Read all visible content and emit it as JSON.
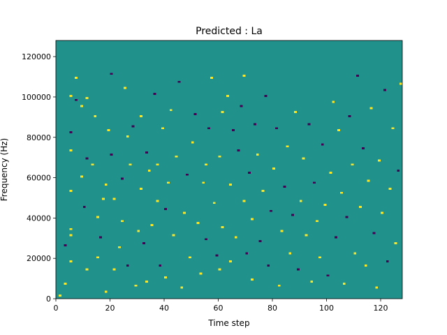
{
  "chart_data": {
    "type": "heatmap",
    "title": "Predicted : La",
    "xlabel": "Time step",
    "ylabel": "Frequency (Hz)",
    "xlim": [
      0,
      128
    ],
    "ylim": [
      0,
      128000
    ],
    "x_ticks": [
      0,
      20,
      40,
      60,
      80,
      100,
      120
    ],
    "y_ticks": [
      0,
      20000,
      40000,
      60000,
      80000,
      100000,
      120000
    ],
    "x_tick_labels": [
      "0",
      "20",
      "40",
      "60",
      "80",
      "100",
      "120"
    ],
    "y_tick_labels": [
      "0",
      "20000",
      "40000",
      "60000",
      "80000",
      "100000",
      "120000"
    ],
    "colormap": "viridis",
    "colors": {
      "low": "#440154",
      "mid": "#21918c",
      "high": "#fde725"
    },
    "levels": {
      "low": -1,
      "background": 0,
      "high": 1
    },
    "grid": false,
    "colorbar": false,
    "n_time_steps": 128,
    "n_freq_bins": 128,
    "freq_bin_width_hz": 1000,
    "cells": [
      [
        1,
        1,
        1
      ],
      [
        3,
        7,
        1
      ],
      [
        3,
        26,
        -1
      ],
      [
        5,
        18,
        1
      ],
      [
        5,
        31,
        1
      ],
      [
        5,
        34,
        1
      ],
      [
        5,
        53,
        1
      ],
      [
        5,
        73,
        1
      ],
      [
        5,
        82,
        -1
      ],
      [
        5,
        100,
        1
      ],
      [
        7,
        98,
        -1
      ],
      [
        7,
        109,
        1
      ],
      [
        9,
        60,
        1
      ],
      [
        9,
        95,
        1
      ],
      [
        10,
        45,
        -1
      ],
      [
        11,
        69,
        -1
      ],
      [
        11,
        14,
        1
      ],
      [
        11,
        99,
        1
      ],
      [
        13,
        66,
        1
      ],
      [
        14,
        90,
        1
      ],
      [
        15,
        20,
        1
      ],
      [
        15,
        40,
        1
      ],
      [
        16,
        30,
        -1
      ],
      [
        17,
        49,
        1
      ],
      [
        18,
        3,
        1
      ],
      [
        18,
        56,
        1
      ],
      [
        19,
        83,
        1
      ],
      [
        20,
        71,
        -1
      ],
      [
        20,
        111,
        -1
      ],
      [
        21,
        14,
        1
      ],
      [
        21,
        49,
        1
      ],
      [
        23,
        25,
        1
      ],
      [
        24,
        38,
        1
      ],
      [
        24,
        59,
        -1
      ],
      [
        25,
        104,
        1
      ],
      [
        26,
        16,
        -1
      ],
      [
        26,
        80,
        1
      ],
      [
        27,
        66,
        1
      ],
      [
        28,
        85,
        -1
      ],
      [
        29,
        6,
        1
      ],
      [
        30,
        33,
        1
      ],
      [
        31,
        54,
        1
      ],
      [
        31,
        90,
        1
      ],
      [
        32,
        27,
        -1
      ],
      [
        33,
        8,
        1
      ],
      [
        33,
        72,
        -1
      ],
      [
        34,
        63,
        1
      ],
      [
        35,
        36,
        1
      ],
      [
        36,
        101,
        -1
      ],
      [
        37,
        48,
        1
      ],
      [
        37,
        66,
        1
      ],
      [
        38,
        16,
        -1
      ],
      [
        39,
        84,
        1
      ],
      [
        40,
        10,
        1
      ],
      [
        40,
        44,
        -1
      ],
      [
        41,
        57,
        1
      ],
      [
        42,
        93,
        1
      ],
      [
        43,
        31,
        1
      ],
      [
        44,
        70,
        1
      ],
      [
        45,
        107,
        -1
      ],
      [
        46,
        5,
        1
      ],
      [
        47,
        42,
        1
      ],
      [
        48,
        61,
        -1
      ],
      [
        49,
        20,
        1
      ],
      [
        50,
        77,
        1
      ],
      [
        51,
        91,
        -1
      ],
      [
        52,
        37,
        1
      ],
      [
        53,
        12,
        1
      ],
      [
        54,
        57,
        1
      ],
      [
        55,
        29,
        -1
      ],
      [
        55,
        66,
        1
      ],
      [
        56,
        84,
        -1
      ],
      [
        57,
        109,
        1
      ],
      [
        58,
        47,
        1
      ],
      [
        59,
        21,
        -1
      ],
      [
        60,
        14,
        1
      ],
      [
        60,
        70,
        1
      ],
      [
        61,
        35,
        1
      ],
      [
        61,
        92,
        1
      ],
      [
        63,
        100,
        1
      ],
      [
        64,
        18,
        1
      ],
      [
        64,
        56,
        1
      ],
      [
        65,
        83,
        -1
      ],
      [
        66,
        30,
        1
      ],
      [
        67,
        73,
        -1
      ],
      [
        68,
        95,
        -1
      ],
      [
        69,
        48,
        1
      ],
      [
        69,
        110,
        1
      ],
      [
        70,
        22,
        -1
      ],
      [
        71,
        62,
        -1
      ],
      [
        72,
        9,
        1
      ],
      [
        72,
        39,
        1
      ],
      [
        73,
        86,
        -1
      ],
      [
        74,
        71,
        1
      ],
      [
        75,
        28,
        -1
      ],
      [
        76,
        53,
        1
      ],
      [
        77,
        100,
        -1
      ],
      [
        78,
        16,
        -1
      ],
      [
        79,
        43,
        -1
      ],
      [
        80,
        64,
        1
      ],
      [
        81,
        84,
        -1
      ],
      [
        82,
        6,
        1
      ],
      [
        83,
        33,
        1
      ],
      [
        84,
        55,
        -1
      ],
      [
        85,
        75,
        1
      ],
      [
        86,
        22,
        1
      ],
      [
        87,
        41,
        -1
      ],
      [
        88,
        92,
        1
      ],
      [
        89,
        14,
        -1
      ],
      [
        90,
        48,
        1
      ],
      [
        91,
        69,
        1
      ],
      [
        92,
        31,
        1
      ],
      [
        93,
        86,
        -1
      ],
      [
        94,
        8,
        1
      ],
      [
        95,
        57,
        -1
      ],
      [
        96,
        38,
        1
      ],
      [
        97,
        20,
        1
      ],
      [
        98,
        76,
        -1
      ],
      [
        99,
        46,
        1
      ],
      [
        100,
        11,
        -1
      ],
      [
        101,
        62,
        1
      ],
      [
        102,
        97,
        1
      ],
      [
        103,
        30,
        -1
      ],
      [
        104,
        83,
        1
      ],
      [
        105,
        52,
        1
      ],
      [
        106,
        7,
        1
      ],
      [
        107,
        40,
        -1
      ],
      [
        108,
        90,
        -1
      ],
      [
        109,
        66,
        1
      ],
      [
        110,
        22,
        1
      ],
      [
        111,
        110,
        -1
      ],
      [
        112,
        45,
        1
      ],
      [
        113,
        74,
        -1
      ],
      [
        114,
        16,
        1
      ],
      [
        115,
        58,
        1
      ],
      [
        116,
        94,
        1
      ],
      [
        117,
        32,
        -1
      ],
      [
        118,
        5,
        1
      ],
      [
        119,
        68,
        1
      ],
      [
        120,
        42,
        1
      ],
      [
        121,
        103,
        -1
      ],
      [
        122,
        18,
        -1
      ],
      [
        123,
        54,
        1
      ],
      [
        124,
        84,
        1
      ],
      [
        125,
        27,
        1
      ],
      [
        126,
        63,
        -1
      ],
      [
        127,
        106,
        1
      ]
    ]
  }
}
